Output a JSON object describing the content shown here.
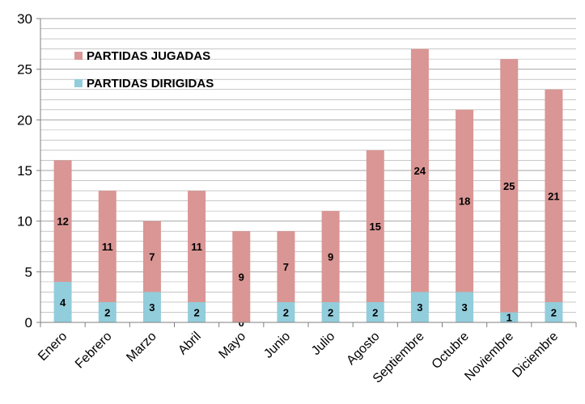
{
  "chart_data": {
    "type": "bar",
    "stacked": true,
    "categories": [
      "Enero",
      "Febrero",
      "Marzo",
      "Abril",
      "Mayo",
      "Junio",
      "Julio",
      "Agosto",
      "Septiembre",
      "Octubre",
      "Noviembre",
      "Diciembre"
    ],
    "series": [
      {
        "name": "PARTIDAS DIRIGIDAS",
        "color": "#92cddc",
        "values": [
          4,
          2,
          3,
          2,
          0,
          2,
          2,
          2,
          3,
          3,
          1,
          2
        ]
      },
      {
        "name": "PARTIDAS JUGADAS",
        "color": "#d99694",
        "values": [
          12,
          11,
          7,
          11,
          9,
          7,
          9,
          15,
          24,
          18,
          25,
          21
        ]
      }
    ],
    "title": "",
    "xlabel": "",
    "ylabel": "",
    "ylim": [
      0,
      30
    ],
    "yticks": [
      0,
      5,
      10,
      15,
      20,
      25,
      30
    ],
    "grid": true,
    "legend_position": "top-left",
    "legend_order": [
      "PARTIDAS JUGADAS",
      "PARTIDAS DIRIGIDAS"
    ],
    "colors": {
      "grid": "#a6a6a6",
      "axis": "#7f7f7f"
    }
  }
}
